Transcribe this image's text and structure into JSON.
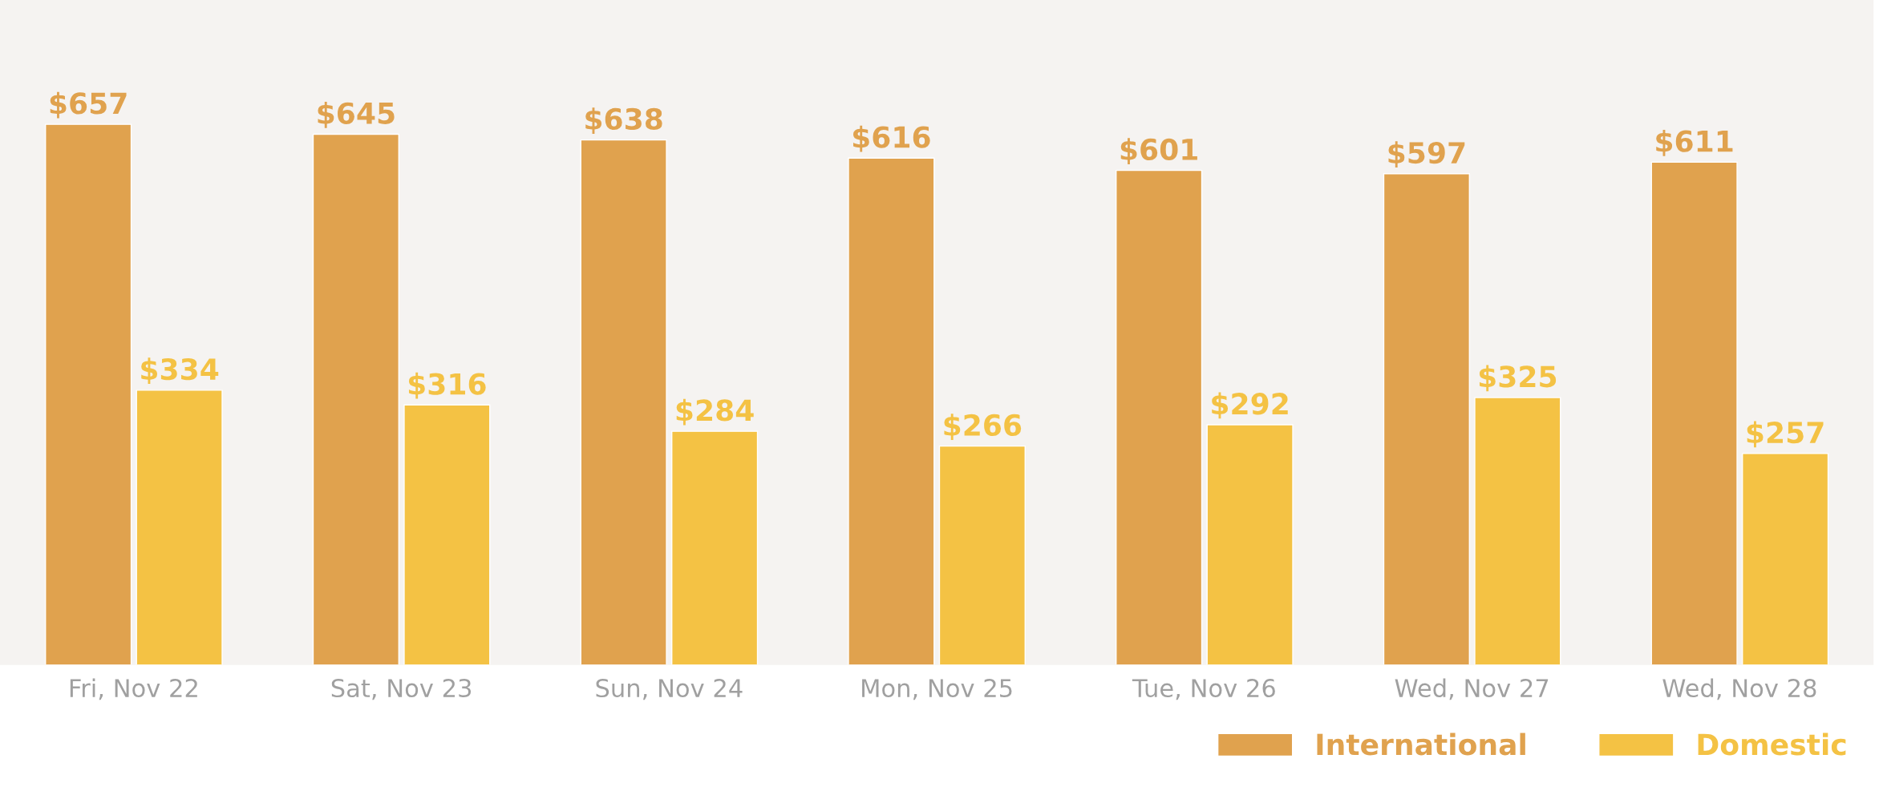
{
  "chart_data": {
    "type": "bar",
    "categories": [
      "Fri, Nov 22",
      "Sat, Nov 23",
      "Sun, Nov 24",
      "Mon, Nov 25",
      "Tue, Nov 26",
      "Wed, Nov 27",
      "Wed, Nov 28"
    ],
    "series": [
      {
        "name": "International",
        "color": "#e0a24e",
        "values": [
          657,
          645,
          638,
          616,
          601,
          597,
          611
        ],
        "value_labels": [
          "$657",
          "$645",
          "$638",
          "$616",
          "$601",
          "$597",
          "$611"
        ]
      },
      {
        "name": "Domestic",
        "color": "#f4c244",
        "values": [
          334,
          316,
          284,
          266,
          292,
          325,
          257
        ],
        "value_labels": [
          "$334",
          "$316",
          "$284",
          "$266",
          "$292",
          "$325",
          "$257"
        ]
      }
    ],
    "legend": "bottom right",
    "grid": false
  }
}
